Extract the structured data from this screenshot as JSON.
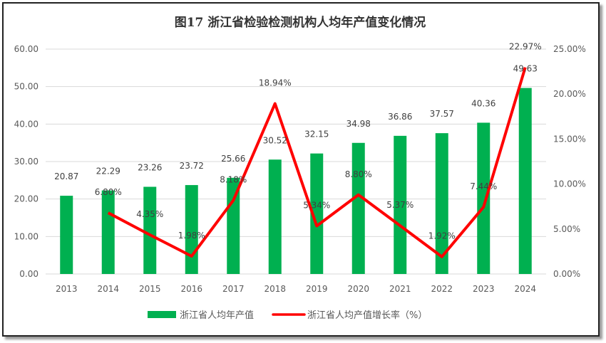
{
  "chart_data": {
    "type": "bar+line",
    "title": "图17   浙江省检验检测机构人均年产值变化情况",
    "categories": [
      "2013",
      "2014",
      "2015",
      "2016",
      "2017",
      "2018",
      "2019",
      "2020",
      "2021",
      "2022",
      "2023",
      "2024"
    ],
    "series": [
      {
        "name": "浙江省人均年产值",
        "type": "bar",
        "axis": "left",
        "color": "#00B050",
        "values": [
          20.87,
          22.29,
          23.26,
          23.72,
          25.66,
          30.52,
          32.15,
          34.98,
          36.86,
          37.57,
          40.36,
          49.63
        ],
        "labels": [
          "20.87",
          "22.29",
          "23.26",
          "23.72",
          "25.66",
          "30.52",
          "32.15",
          "34.98",
          "36.86",
          "37.57",
          "40.36",
          "49.63"
        ]
      },
      {
        "name": "浙江省人均产值增长率（%）",
        "type": "line",
        "axis": "right",
        "color": "#FF0000",
        "values": [
          null,
          6.8,
          4.35,
          1.98,
          8.18,
          18.94,
          5.34,
          8.8,
          5.37,
          1.92,
          7.44,
          22.97
        ],
        "labels": [
          "",
          "6.80%",
          "4.35%",
          "1.98%",
          "8.18%",
          "18.94%",
          "5.34%",
          "8.80%",
          "5.37%",
          "1.92%",
          "7.44%",
          "22.97%"
        ]
      }
    ],
    "y_left": {
      "range": [
        0,
        60
      ],
      "ticks": [
        "0.00",
        "10.00",
        "20.00",
        "30.00",
        "40.00",
        "50.00",
        "60.00"
      ]
    },
    "y_right": {
      "range": [
        0,
        25
      ],
      "ticks": [
        "0.00%",
        "5.00%",
        "10.00%",
        "15.00%",
        "20.00%",
        "25.00%"
      ]
    },
    "grid": true,
    "legend": "bottom"
  }
}
